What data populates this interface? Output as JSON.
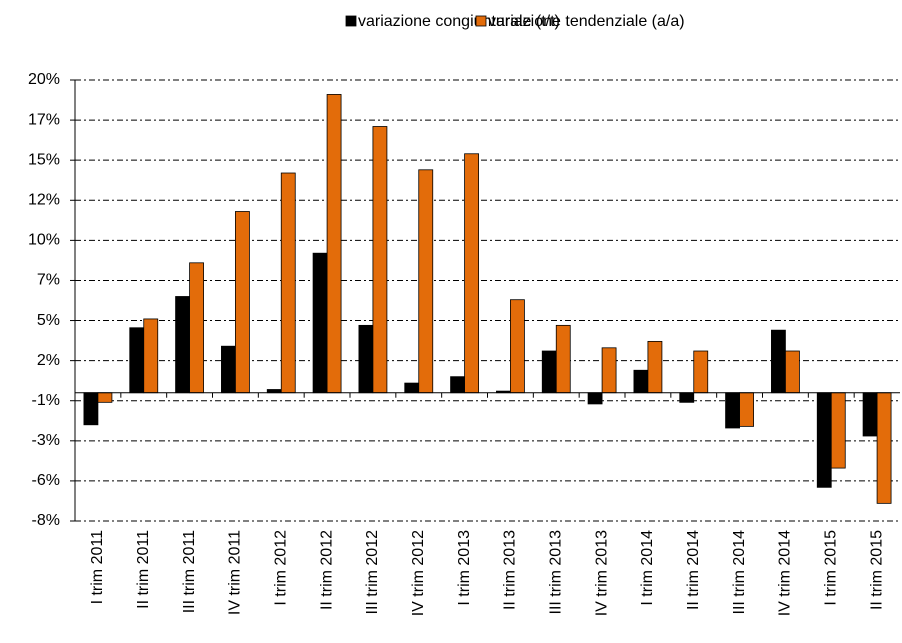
{
  "chart_data": {
    "type": "bar",
    "categories": [
      "I trim 2011",
      "II trim 2011",
      "III trim 2011",
      "IV trim 2011",
      "I trim 2012",
      "II trim 2012",
      "III trim 2012",
      "IV trim 2012",
      "I trim 2013",
      "II trim 2013",
      "III trim 2013",
      "IV trim 2013",
      "I trim 2014",
      "II trim 2014",
      "III trim 2014",
      "IV trim 2014",
      "I trim 2015",
      "II trim 2015"
    ],
    "series": [
      {
        "name": "variazione congiunturale (t/t)",
        "color": "#000000",
        "values": [
          -2.0,
          4.05,
          6.0,
          2.9,
          0.2,
          8.7,
          4.2,
          0.6,
          1.0,
          0.1,
          2.6,
          -0.7,
          1.4,
          -0.6,
          -2.2,
          3.9,
          -5.9,
          -2.7
        ]
      },
      {
        "name": "variazione tendenziale (a/a)",
        "color": "#e36c0a",
        "values": [
          -0.6,
          4.6,
          8.1,
          11.3,
          13.7,
          18.6,
          16.6,
          13.9,
          14.9,
          5.8,
          4.2,
          2.8,
          3.2,
          2.6,
          -2.1,
          2.6,
          -4.7,
          -6.9
        ]
      }
    ],
    "ylim": [
      -8,
      19.5
    ],
    "yticks": [
      {
        "value": -8,
        "label": "-8%"
      },
      {
        "value": -5.5,
        "label": "-6%"
      },
      {
        "value": -3,
        "label": "-3%"
      },
      {
        "value": -0.5,
        "label": "-1%"
      },
      {
        "value": 2,
        "label": "2%"
      },
      {
        "value": 4.5,
        "label": "5%"
      },
      {
        "value": 7,
        "label": "7%"
      },
      {
        "value": 9.5,
        "label": "10%"
      },
      {
        "value": 12,
        "label": "12%"
      },
      {
        "value": 14.5,
        "label": "15%"
      },
      {
        "value": 17,
        "label": "17%"
      },
      {
        "value": 19.5,
        "label": "20%"
      }
    ],
    "grid": true,
    "legend": "top"
  }
}
